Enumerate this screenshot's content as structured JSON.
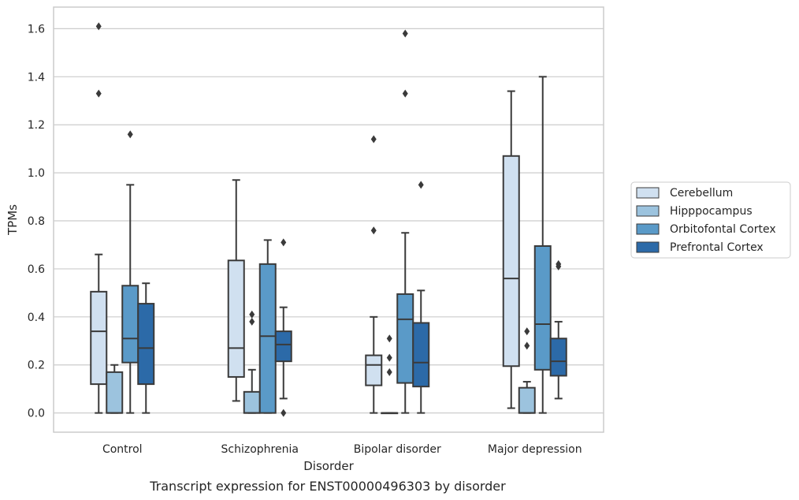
{
  "caption": "Transcript expression for ENST00000496303 by disorder",
  "chart_data": {
    "type": "box",
    "xlabel": "Disorder",
    "ylabel": "TPMs",
    "ylim": [
      -0.08,
      1.69
    ],
    "yticks": [
      0.0,
      0.2,
      0.4,
      0.6,
      0.8,
      1.0,
      1.2,
      1.4,
      1.6
    ],
    "ytick_labels": [
      "0.0",
      "0.2",
      "0.4",
      "0.6",
      "0.8",
      "1.0",
      "1.2",
      "1.4",
      "1.6"
    ],
    "grid": true,
    "legend_position": "right",
    "categories": [
      "Control",
      "Schizophrenia",
      "Bipolar disorder",
      "Major depression"
    ],
    "series": [
      {
        "name": "Cerebellum",
        "color": "#d0e0f0",
        "boxes": [
          {
            "min": 0.0,
            "q1": 0.12,
            "median": 0.34,
            "q3": 0.505,
            "max": 0.66,
            "outliers": [
              1.33,
              1.61
            ]
          },
          {
            "min": 0.05,
            "q1": 0.15,
            "median": 0.27,
            "q3": 0.635,
            "max": 0.97,
            "outliers": []
          },
          {
            "min": 0.0,
            "q1": 0.115,
            "median": 0.2,
            "q3": 0.24,
            "max": 0.4,
            "outliers": [
              0.76,
              1.14
            ]
          },
          {
            "min": 0.02,
            "q1": 0.195,
            "median": 0.56,
            "q3": 1.07,
            "max": 1.34,
            "outliers": []
          }
        ]
      },
      {
        "name": "Hipppocampus",
        "color": "#9cc3de",
        "boxes": [
          {
            "min": 0.0,
            "q1": 0.0,
            "median": 0.0,
            "q3": 0.17,
            "max": 0.2,
            "outliers": []
          },
          {
            "min": 0.0,
            "q1": 0.0,
            "median": 0.0,
            "q3": 0.088,
            "max": 0.18,
            "outliers": [
              0.38,
              0.41
            ]
          },
          {
            "min": 0.0,
            "q1": 0.0,
            "median": 0.0,
            "q3": 0.0,
            "max": 0.0,
            "outliers": [
              0.17,
              0.23,
              0.31
            ]
          },
          {
            "min": 0.0,
            "q1": 0.0,
            "median": 0.0,
            "q3": 0.105,
            "max": 0.13,
            "outliers": [
              0.28,
              0.34
            ]
          }
        ]
      },
      {
        "name": "Orbitofontal Cortex",
        "color": "#5a9ac8",
        "boxes": [
          {
            "min": 0.0,
            "q1": 0.21,
            "median": 0.31,
            "q3": 0.53,
            "max": 0.95,
            "outliers": [
              1.16
            ]
          },
          {
            "min": 0.0,
            "q1": 0.0,
            "median": 0.32,
            "q3": 0.62,
            "max": 0.72,
            "outliers": []
          },
          {
            "min": 0.0,
            "q1": 0.125,
            "median": 0.39,
            "q3": 0.495,
            "max": 0.75,
            "outliers": [
              1.33,
              1.58
            ]
          },
          {
            "min": 0.0,
            "q1": 0.18,
            "median": 0.37,
            "q3": 0.695,
            "max": 1.4,
            "outliers": []
          }
        ]
      },
      {
        "name": "Prefrontal Cortex",
        "color": "#2c6aa8",
        "boxes": [
          {
            "min": 0.0,
            "q1": 0.12,
            "median": 0.27,
            "q3": 0.455,
            "max": 0.54,
            "outliers": []
          },
          {
            "min": 0.06,
            "q1": 0.215,
            "median": 0.285,
            "q3": 0.34,
            "max": 0.44,
            "outliers": [
              0.0,
              0.71
            ]
          },
          {
            "min": 0.0,
            "q1": 0.11,
            "median": 0.21,
            "q3": 0.375,
            "max": 0.51,
            "outliers": [
              0.95
            ]
          },
          {
            "min": 0.06,
            "q1": 0.155,
            "median": 0.215,
            "q3": 0.31,
            "max": 0.38,
            "outliers": [
              0.61,
              0.62
            ]
          }
        ]
      }
    ]
  }
}
